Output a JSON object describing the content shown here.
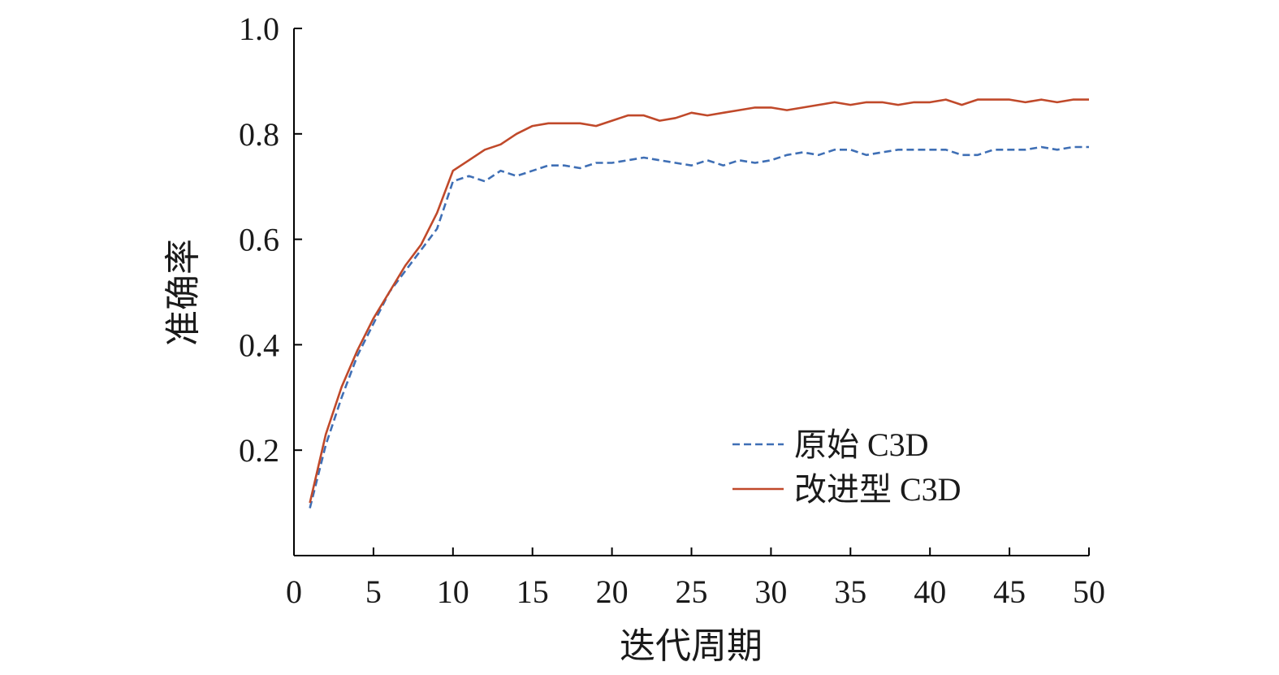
{
  "chart_data": {
    "type": "line",
    "title": "",
    "xlabel": "迭代周期",
    "ylabel": "准确率",
    "xlim": [
      0,
      50
    ],
    "ylim": [
      0,
      1.0
    ],
    "xticks": [
      "0",
      "5",
      "10",
      "15",
      "20",
      "25",
      "30",
      "35",
      "40",
      "45",
      "50"
    ],
    "yticks": [
      "0.2",
      "0.4",
      "0.6",
      "0.8",
      "1.0"
    ],
    "grid": false,
    "legend_position": "bottom-right",
    "x": [
      1,
      2,
      3,
      4,
      5,
      6,
      7,
      8,
      9,
      10,
      11,
      12,
      13,
      14,
      15,
      16,
      17,
      18,
      19,
      20,
      21,
      22,
      23,
      24,
      25,
      26,
      27,
      28,
      29,
      30,
      31,
      32,
      33,
      34,
      35,
      36,
      37,
      38,
      39,
      40,
      41,
      42,
      43,
      44,
      45,
      46,
      47,
      48,
      49,
      50
    ],
    "series": [
      {
        "name": "原始 C3D",
        "style": "dashed",
        "color": "#3f6fb5",
        "values": [
          0.09,
          0.21,
          0.3,
          0.38,
          0.44,
          0.5,
          0.54,
          0.58,
          0.62,
          0.71,
          0.72,
          0.71,
          0.73,
          0.72,
          0.73,
          0.74,
          0.74,
          0.735,
          0.745,
          0.745,
          0.75,
          0.755,
          0.75,
          0.745,
          0.74,
          0.75,
          0.74,
          0.75,
          0.745,
          0.75,
          0.76,
          0.765,
          0.76,
          0.77,
          0.77,
          0.76,
          0.765,
          0.77,
          0.77,
          0.77,
          0.77,
          0.76,
          0.76,
          0.77,
          0.77,
          0.77,
          0.775,
          0.77,
          0.775,
          0.775
        ]
      },
      {
        "name": "改进型 C3D",
        "style": "solid",
        "color": "#c0492a",
        "values": [
          0.1,
          0.23,
          0.32,
          0.39,
          0.45,
          0.5,
          0.55,
          0.59,
          0.65,
          0.73,
          0.75,
          0.77,
          0.78,
          0.8,
          0.815,
          0.82,
          0.82,
          0.82,
          0.815,
          0.825,
          0.835,
          0.835,
          0.825,
          0.83,
          0.84,
          0.835,
          0.84,
          0.845,
          0.85,
          0.85,
          0.845,
          0.85,
          0.855,
          0.86,
          0.855,
          0.86,
          0.86,
          0.855,
          0.86,
          0.86,
          0.865,
          0.855,
          0.865,
          0.865,
          0.865,
          0.86,
          0.865,
          0.86,
          0.865,
          0.865
        ]
      }
    ]
  }
}
